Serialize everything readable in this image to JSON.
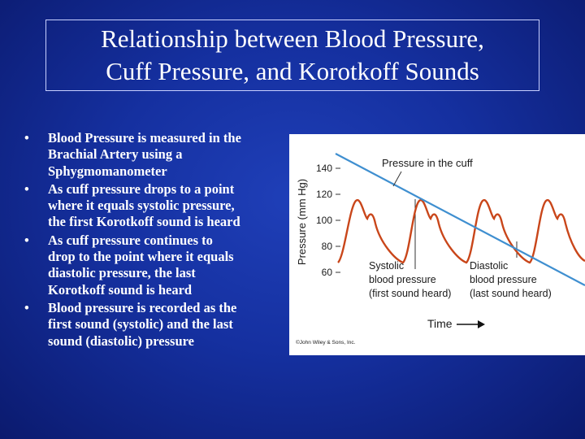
{
  "title": {
    "line1": "Relationship between Blood Pressure,",
    "line2": "Cuff Pressure, and Korotkoff Sounds"
  },
  "bullets": [
    {
      "lines": [
        "Blood Pressure is measured in the",
        "Brachial Artery using a",
        "Sphygmomanometer"
      ]
    },
    {
      "lines": [
        "As cuff pressure drops to a point",
        "where it equals systolic pressure,",
        "the first Korotkoff sound is heard"
      ]
    },
    {
      "lines": [
        "As cuff pressure continues to",
        "drop to the point where it equals",
        "diastolic pressure, the last",
        "Korotkoff sound is heard"
      ]
    },
    {
      "lines": [
        "Blood pressure is recorded as the",
        "first sound (systolic) and the last",
        "sound (diastolic) pressure"
      ]
    }
  ],
  "figure": {
    "y_axis_label": "Pressure (mm Hg)",
    "y_ticks": [
      "140",
      "120",
      "100",
      "80",
      "60"
    ],
    "cuff_label": "Pressure in the cuff",
    "systolic_label": [
      "Systolic",
      "blood pressure",
      "(first sound heard)"
    ],
    "diastolic_label": [
      "Diastolic",
      "blood pressure",
      "(last sound heard)"
    ],
    "time_label": "Time",
    "credit": "©John Wiley & Sons, Inc.",
    "colors": {
      "cuff_line": "#3f8fd0",
      "bp_wave": "#c9461a",
      "ref_line": "#333333"
    }
  }
}
